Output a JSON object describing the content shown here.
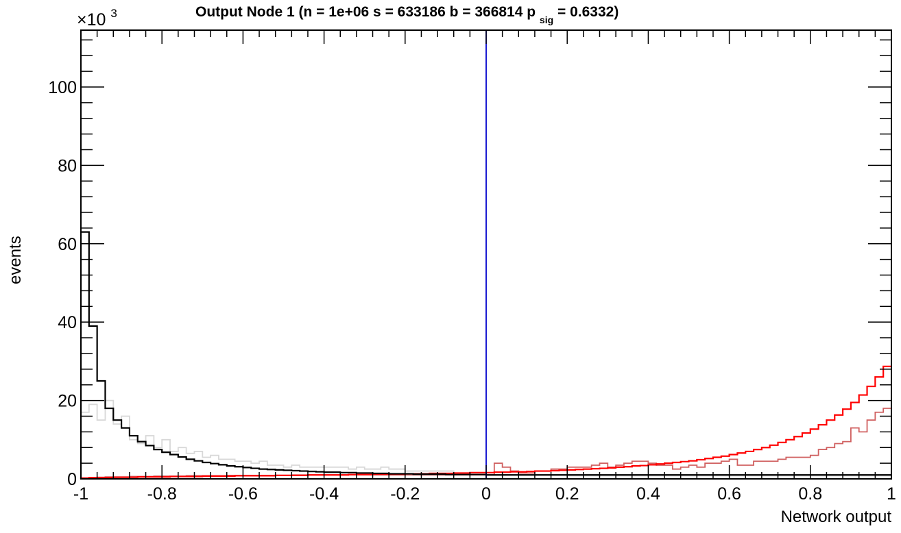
{
  "chart_data": {
    "type": "line",
    "title": {
      "main": "Output Node 1 (n = 1e+06  s = 633186  b = 366814  p",
      "sub": "sig",
      "tail": " = 0.6332)"
    },
    "xlabel": "Network output",
    "ylabel": "events",
    "y_multiplier": {
      "base": "×10",
      "exp": "3"
    },
    "xlim": [
      -1,
      1
    ],
    "ylim": [
      0,
      114.5
    ],
    "x_ticks": [
      "-1",
      "-0.8",
      "-0.6",
      "-0.4",
      "-0.2",
      "0",
      "0.2",
      "0.4",
      "0.6",
      "0.8",
      "1"
    ],
    "y_ticks": [
      "0",
      "20",
      "40",
      "60",
      "80",
      "100"
    ],
    "bin_width": 0.02,
    "cut_line": {
      "x": 0,
      "color": "#0000cc"
    },
    "series": [
      {
        "color": "#d8d8d8",
        "values": [
          17,
          19,
          15,
          20,
          14,
          16,
          10,
          9,
          11,
          8,
          10,
          7,
          8,
          6.5,
          7,
          5.5,
          6,
          5,
          5,
          4.5,
          4.5,
          4,
          4.5,
          3.5,
          3.5,
          3,
          3.5,
          3,
          3,
          3,
          3,
          3,
          3,
          2.5,
          3,
          2.5,
          2.5,
          3,
          2.5,
          2.5,
          2,
          2,
          2,
          2,
          2,
          2,
          1.5,
          1.5,
          1.5,
          1.5,
          1.5,
          1,
          1,
          1,
          1,
          1,
          1,
          1,
          1,
          1,
          0.8,
          0.8,
          0.8,
          0.8,
          0.8,
          0.8,
          0.8,
          0.8,
          0.8,
          0.8,
          0.8,
          0.8,
          0.8,
          0.8,
          0.8,
          0.8,
          0.8,
          0.8,
          0.8,
          0.8,
          0.8,
          0.8,
          0.8,
          0.8,
          0.8,
          0.8,
          0.8,
          0.8,
          0.8,
          0.8,
          0.8,
          0.8,
          0.8,
          0.8,
          0.8,
          0.8,
          0.8,
          0.8,
          0.8,
          0.8
        ]
      },
      {
        "color": "#d06060",
        "values": [
          0.2,
          0.3,
          0.4,
          0.5,
          0.5,
          0.5,
          0.6,
          0.6,
          0.6,
          0.7,
          0.7,
          0.7,
          0.7,
          0.8,
          0.8,
          0.8,
          0.8,
          0.8,
          0.9,
          0.9,
          0.9,
          0.9,
          0.9,
          0.9,
          0.9,
          0.9,
          1,
          1,
          1,
          1,
          1,
          1,
          1,
          1,
          1,
          1,
          1,
          1,
          1,
          1,
          1,
          1,
          1,
          1,
          1,
          1,
          1,
          1,
          1,
          1,
          1,
          4,
          3,
          2,
          1.5,
          1.5,
          2,
          2,
          2.5,
          2.5,
          3,
          3,
          3,
          3.5,
          4,
          3,
          3.5,
          4,
          4.5,
          4.5,
          4,
          3.5,
          3.5,
          2.5,
          3,
          3.5,
          3,
          4,
          4,
          4.5,
          5,
          3.5,
          3.5,
          4.5,
          4.5,
          4.5,
          5,
          5.5,
          5.5,
          5.5,
          6,
          7.5,
          8,
          9,
          9.5,
          13,
          12,
          15,
          17,
          18
        ]
      },
      {
        "color": "#ff0000",
        "values": [
          0.2,
          0.3,
          0.3,
          0.3,
          0.4,
          0.4,
          0.4,
          0.5,
          0.5,
          0.5,
          0.5,
          0.6,
          0.6,
          0.6,
          0.6,
          0.7,
          0.7,
          0.7,
          0.7,
          0.8,
          0.8,
          0.8,
          0.8,
          0.8,
          0.9,
          0.9,
          0.9,
          0.9,
          1,
          1,
          1,
          1,
          1,
          1.1,
          1.1,
          1.1,
          1.2,
          1.2,
          1.2,
          1.2,
          1.3,
          1.3,
          1.3,
          1.4,
          1.4,
          1.4,
          1.5,
          1.5,
          1.6,
          1.6,
          1.6,
          1.7,
          1.7,
          1.8,
          1.8,
          1.9,
          2,
          2,
          2.1,
          2.2,
          2.3,
          2.4,
          2.5,
          2.6,
          2.7,
          2.8,
          3,
          3.1,
          3.3,
          3.4,
          3.6,
          3.8,
          4,
          4.2,
          4.4,
          4.6,
          4.9,
          5.2,
          5.5,
          5.8,
          6.2,
          6.6,
          7,
          7.5,
          8,
          8.6,
          9.3,
          10,
          10.8,
          11.7,
          12.7,
          13.8,
          15,
          16.3,
          17.8,
          19.5,
          21.4,
          23.6,
          26,
          28.7
        ]
      },
      {
        "color": "#000000",
        "values": [
          63,
          39,
          25,
          18,
          15,
          13,
          11,
          9.5,
          8.5,
          7.5,
          6.8,
          6.2,
          5.6,
          5,
          4.6,
          4.2,
          3.9,
          3.6,
          3.3,
          3.1,
          2.9,
          2.7,
          2.5,
          2.4,
          2.3,
          2.2,
          2.1,
          2,
          1.9,
          1.8,
          1.7,
          1.7,
          1.6,
          1.6,
          1.5,
          1.5,
          1.4,
          1.4,
          1.3,
          1.3,
          1.3,
          1.2,
          1.2,
          1.2,
          1.2,
          1.1,
          1.1,
          1.1,
          1.1,
          1.1,
          1,
          1,
          1,
          1,
          1,
          1,
          1,
          1,
          1,
          1,
          1,
          1,
          1,
          1,
          1,
          1,
          1,
          1,
          1,
          1,
          1,
          1,
          1,
          1,
          1,
          1,
          1,
          1,
          1,
          1,
          1,
          1,
          1,
          1,
          1,
          1,
          1,
          1,
          1,
          1,
          1,
          1,
          1,
          1,
          1,
          1,
          1,
          1,
          1,
          1
        ]
      }
    ]
  }
}
